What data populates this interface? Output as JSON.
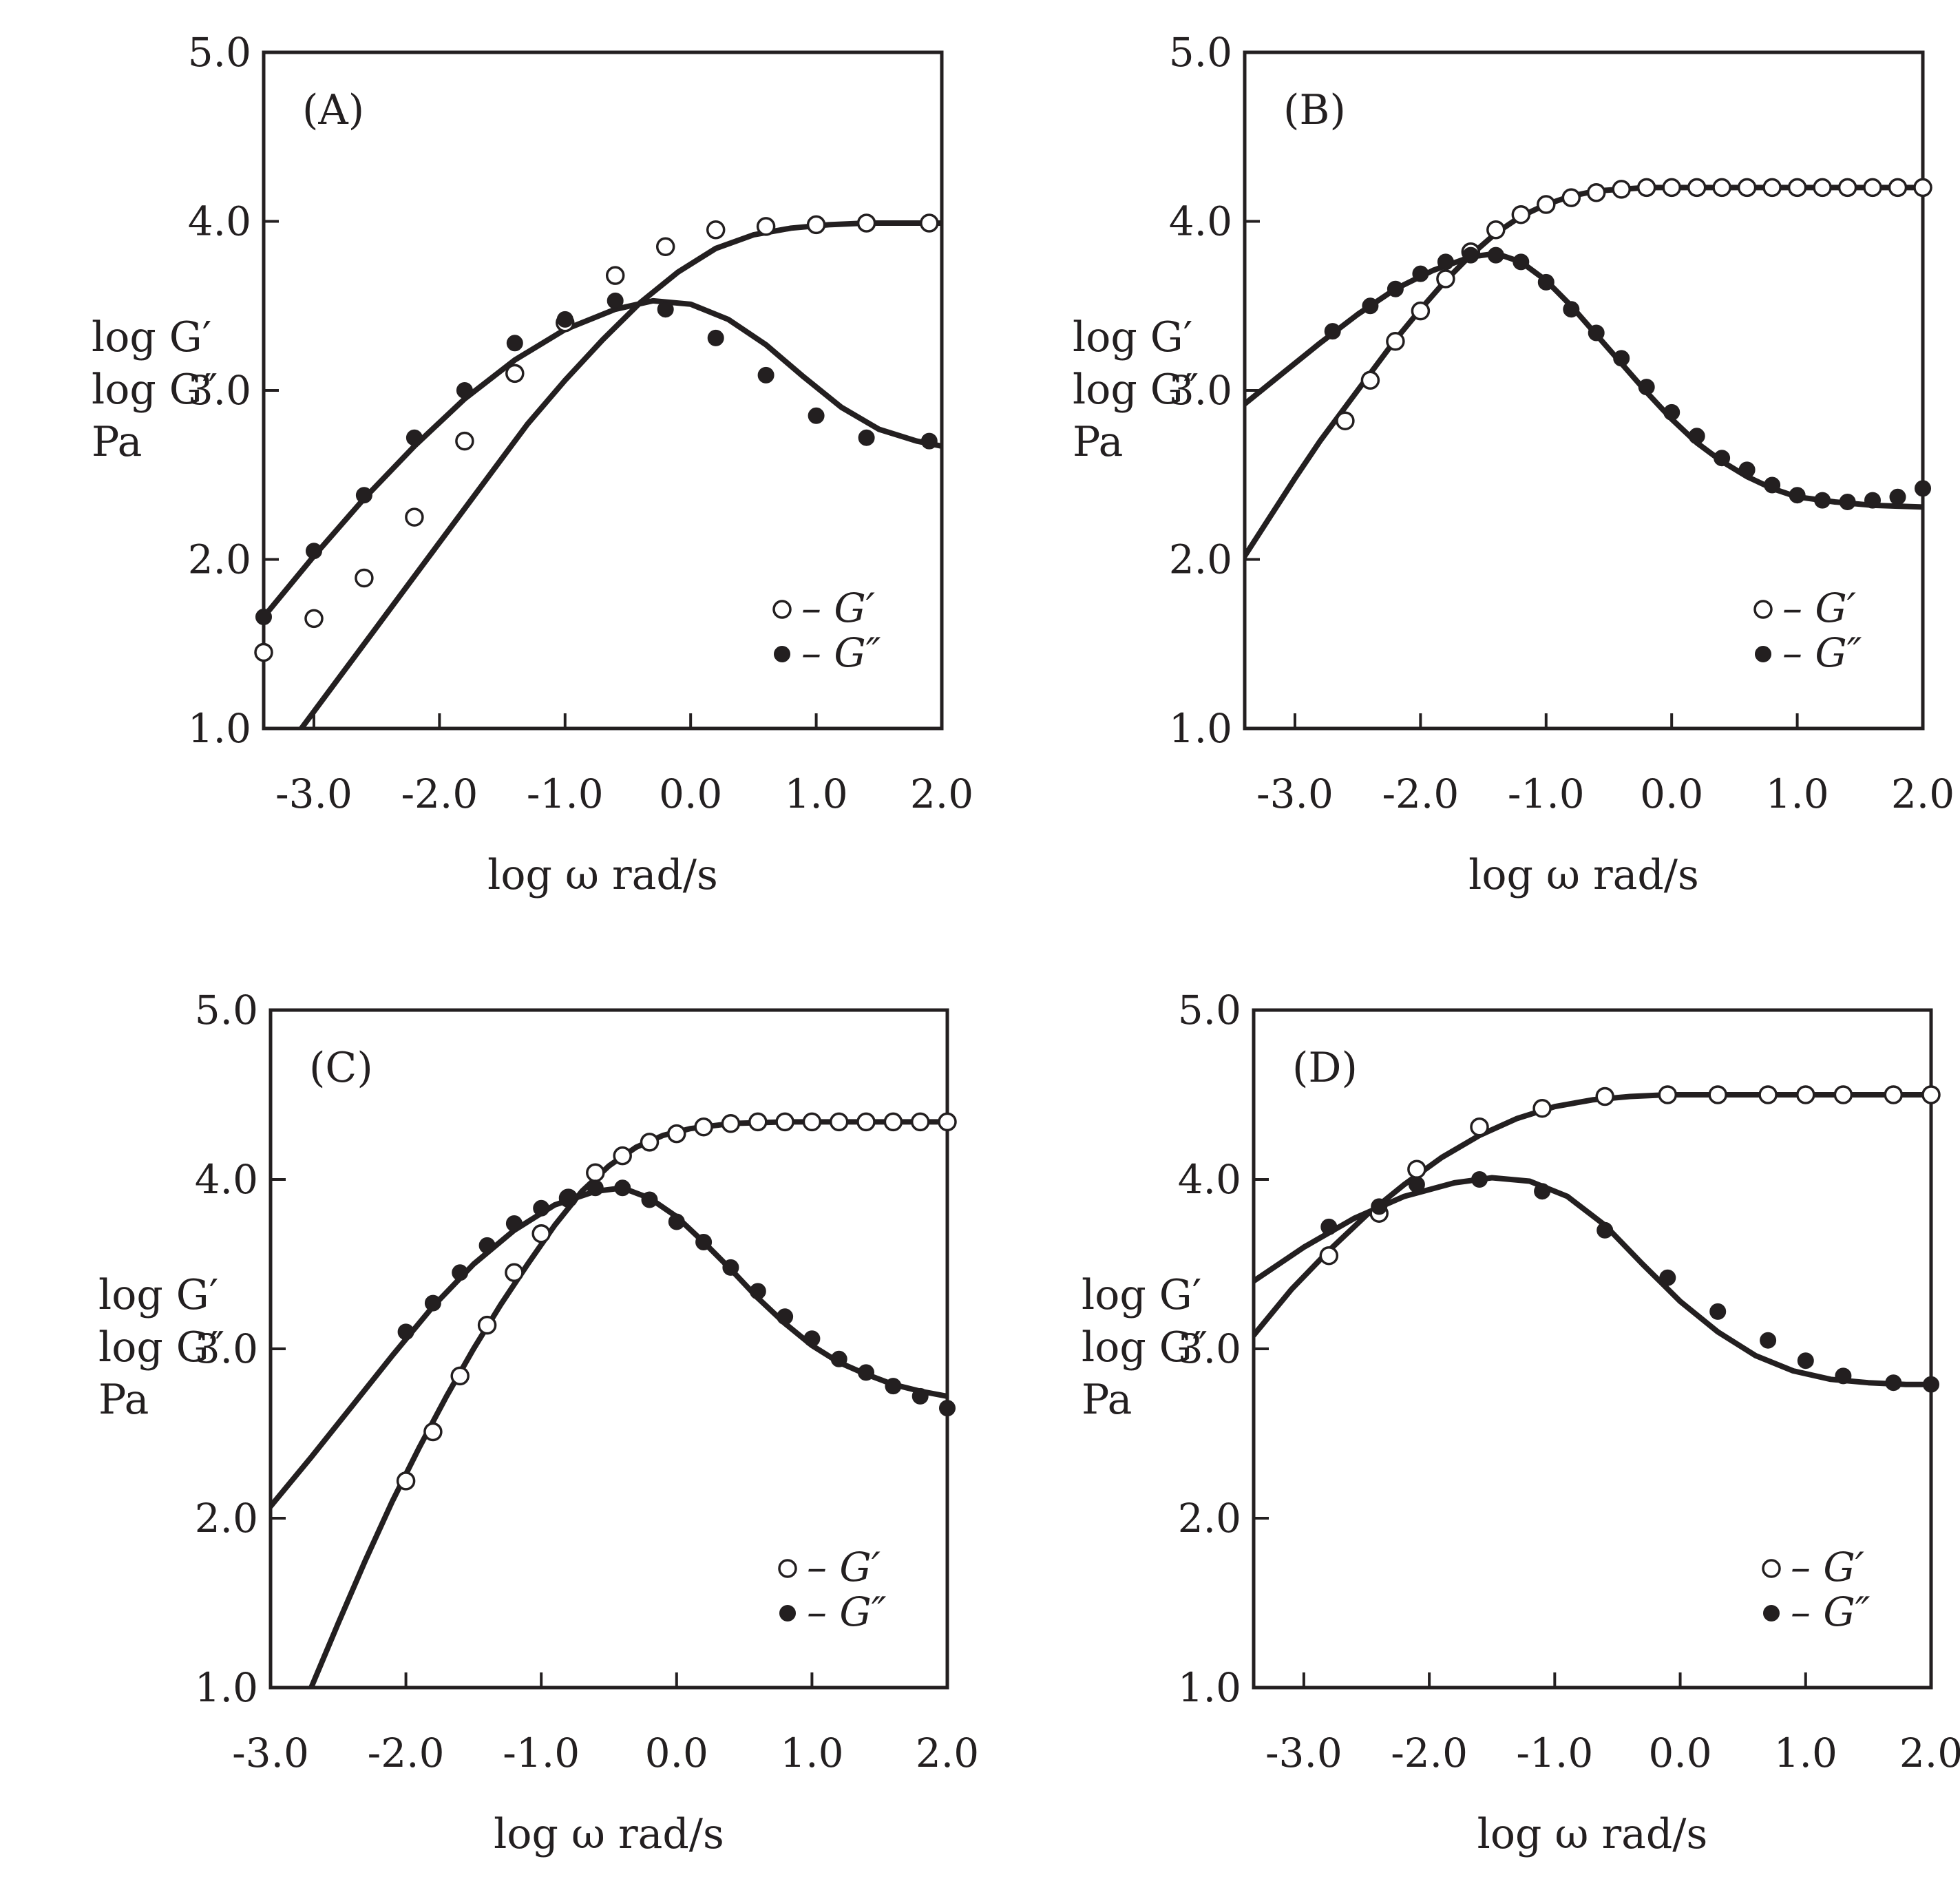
{
  "chart_data": [
    {
      "panel_label": "(A)",
      "type": "line",
      "xlabel": "log ω  rad/s",
      "ylabel": [
        "log G′",
        "log G″",
        "Pa"
      ],
      "xlim": [
        -3.4,
        2.0
      ],
      "ylim": [
        1.0,
        5.0
      ],
      "xticks": [
        "-3.0",
        "-2.0",
        "-1.0",
        "0.0",
        "1.0",
        "2.0"
      ],
      "xtick_values": [
        -3.0,
        -2.0,
        -1.0,
        0.0,
        1.0,
        2.0
      ],
      "yticks": [
        "1.0",
        "2.0",
        "3.0",
        "4.0",
        "5.0"
      ],
      "ytick_values": [
        1.0,
        2.0,
        3.0,
        4.0,
        5.0
      ],
      "legend": [
        "– G′",
        "– G″"
      ],
      "series": [
        {
          "name": "G′",
          "marker": "open",
          "x": [
            -3.4,
            -3.0,
            -2.6,
            -2.2,
            -1.8,
            -1.4,
            -1.0,
            -0.6,
            -0.2,
            0.2,
            0.6,
            1.0,
            1.4,
            1.9
          ],
          "y": [
            1.45,
            1.65,
            1.89,
            2.25,
            2.7,
            3.1,
            3.4,
            3.68,
            3.85,
            3.95,
            3.97,
            3.98,
            3.99,
            3.99
          ],
          "fit_x": [
            -3.1,
            -2.8,
            -2.5,
            -2.2,
            -1.9,
            -1.6,
            -1.3,
            -1.0,
            -0.7,
            -0.4,
            -0.1,
            0.2,
            0.5,
            0.8,
            1.1,
            1.4,
            1.7,
            2.0
          ],
          "fit_y": [
            1.0,
            1.3,
            1.6,
            1.9,
            2.2,
            2.5,
            2.8,
            3.06,
            3.3,
            3.52,
            3.7,
            3.84,
            3.92,
            3.96,
            3.98,
            3.99,
            3.99,
            3.99
          ]
        },
        {
          "name": "G″",
          "marker": "filled",
          "x": [
            -3.4,
            -3.0,
            -2.6,
            -2.2,
            -1.8,
            -1.4,
            -1.0,
            -0.6,
            -0.2,
            0.2,
            0.6,
            1.0,
            1.4,
            1.9
          ],
          "y": [
            1.66,
            2.05,
            2.38,
            2.72,
            3.0,
            3.28,
            3.42,
            3.53,
            3.48,
            3.31,
            3.09,
            2.85,
            2.72,
            2.7
          ],
          "fit_x": [
            -3.4,
            -3.0,
            -2.6,
            -2.2,
            -1.8,
            -1.4,
            -1.0,
            -0.6,
            -0.3,
            0.0,
            0.3,
            0.6,
            0.9,
            1.2,
            1.5,
            1.8,
            2.0
          ],
          "fit_y": [
            1.66,
            2.02,
            2.36,
            2.67,
            2.95,
            3.18,
            3.36,
            3.48,
            3.53,
            3.51,
            3.42,
            3.27,
            3.08,
            2.9,
            2.77,
            2.7,
            2.67
          ]
        }
      ]
    },
    {
      "panel_label": "(B)",
      "type": "line",
      "xlabel": "log ω  rad/s",
      "ylabel": [
        "log G′",
        "log G″",
        "Pa"
      ],
      "xlim": [
        -3.4,
        2.0
      ],
      "ylim": [
        1.0,
        5.0
      ],
      "xticks": [
        "-3.0",
        "-2.0",
        "-1.0",
        "0.0",
        "1.0",
        "2.0"
      ],
      "xtick_values": [
        -3.0,
        -2.0,
        -1.0,
        0.0,
        1.0,
        2.0
      ],
      "yticks": [
        "1.0",
        "2.0",
        "3.0",
        "4.0",
        "5.0"
      ],
      "ytick_values": [
        1.0,
        2.0,
        3.0,
        4.0,
        5.0
      ],
      "legend": [
        "– G′",
        "– G″"
      ],
      "series": [
        {
          "name": "G′",
          "marker": "open",
          "x": [
            -2.6,
            -2.4,
            -2.2,
            -2.0,
            -1.8,
            -1.6,
            -1.4,
            -1.2,
            -1.0,
            -0.8,
            -0.6,
            -0.4,
            -0.2,
            0.0,
            0.2,
            0.4,
            0.6,
            0.8,
            1.0,
            1.2,
            1.4,
            1.6,
            1.8,
            2.0
          ],
          "y": [
            2.82,
            3.06,
            3.29,
            3.47,
            3.66,
            3.82,
            3.95,
            4.04,
            4.1,
            4.14,
            4.17,
            4.19,
            4.2,
            4.2,
            4.2,
            4.2,
            4.2,
            4.2,
            4.2,
            4.2,
            4.2,
            4.2,
            4.2,
            4.2
          ],
          "fit_x": [
            -3.4,
            -3.2,
            -3.0,
            -2.8,
            -2.6,
            -2.4,
            -2.2,
            -2.0,
            -1.8,
            -1.6,
            -1.4,
            -1.2,
            -1.0,
            -0.8,
            -0.6,
            -0.4,
            -0.2,
            0.0,
            0.5,
            1.0,
            1.5,
            2.0
          ],
          "fit_y": [
            2.02,
            2.25,
            2.48,
            2.7,
            2.9,
            3.1,
            3.3,
            3.48,
            3.65,
            3.8,
            3.93,
            4.03,
            4.1,
            4.15,
            4.18,
            4.19,
            4.2,
            4.2,
            4.2,
            4.2,
            4.2,
            4.2
          ]
        },
        {
          "name": "G″",
          "marker": "filled",
          "x": [
            -2.7,
            -2.4,
            -2.2,
            -2.0,
            -1.8,
            -1.6,
            -1.4,
            -1.2,
            -1.0,
            -0.8,
            -0.6,
            -0.4,
            -0.2,
            0.0,
            0.2,
            0.4,
            0.6,
            0.8,
            1.0,
            1.2,
            1.4,
            1.6,
            1.8,
            2.0
          ],
          "y": [
            3.35,
            3.5,
            3.6,
            3.69,
            3.76,
            3.8,
            3.8,
            3.76,
            3.64,
            3.48,
            3.34,
            3.19,
            3.02,
            2.87,
            2.73,
            2.6,
            2.53,
            2.44,
            2.38,
            2.35,
            2.34,
            2.35,
            2.37,
            2.42
          ],
          "fit_x": [
            -3.4,
            -3.1,
            -2.8,
            -2.5,
            -2.2,
            -1.9,
            -1.6,
            -1.4,
            -1.2,
            -1.0,
            -0.8,
            -0.6,
            -0.4,
            -0.2,
            0.0,
            0.2,
            0.4,
            0.6,
            0.8,
            1.0,
            1.3,
            1.6,
            2.0
          ],
          "fit_y": [
            2.92,
            3.1,
            3.28,
            3.45,
            3.6,
            3.71,
            3.79,
            3.81,
            3.76,
            3.65,
            3.5,
            3.33,
            3.16,
            2.99,
            2.83,
            2.69,
            2.58,
            2.49,
            2.42,
            2.37,
            2.34,
            2.32,
            2.31
          ]
        }
      ]
    },
    {
      "panel_label": "(C)",
      "type": "line",
      "xlabel": "log ω  rad/s",
      "ylabel": [
        "log G′",
        "log G″",
        "Pa"
      ],
      "xlim": [
        -3.0,
        2.0
      ],
      "ylim": [
        1.0,
        5.0
      ],
      "xticks": [
        "-3.0",
        "-2.0",
        "-1.0",
        "0.0",
        "1.0",
        "2.0"
      ],
      "xtick_values": [
        -3.0,
        -2.0,
        -1.0,
        0.0,
        1.0,
        2.0
      ],
      "yticks": [
        "1.0",
        "2.0",
        "3.0",
        "4.0",
        "5.0"
      ],
      "ytick_values": [
        1.0,
        2.0,
        3.0,
        4.0,
        5.0
      ],
      "legend": [
        "– G′",
        "– G″"
      ],
      "series": [
        {
          "name": "G′",
          "marker": "open",
          "x": [
            -2.0,
            -1.8,
            -1.6,
            -1.4,
            -1.2,
            -1.0,
            -0.8,
            -0.6,
            -0.4,
            -0.2,
            0.0,
            0.2,
            0.4,
            0.6,
            0.8,
            1.0,
            1.2,
            1.4,
            1.6,
            1.8,
            2.0
          ],
          "y": [
            2.22,
            2.51,
            2.84,
            3.14,
            3.45,
            3.68,
            3.89,
            4.04,
            4.14,
            4.22,
            4.27,
            4.31,
            4.33,
            4.34,
            4.34,
            4.34,
            4.34,
            4.34,
            4.34,
            4.34,
            4.34
          ],
          "fit_x": [
            -2.7,
            -2.5,
            -2.3,
            -2.1,
            -1.9,
            -1.7,
            -1.5,
            -1.3,
            -1.1,
            -0.9,
            -0.7,
            -0.5,
            -0.3,
            -0.1,
            0.1,
            0.4,
            0.8,
            1.2,
            1.6,
            2.0
          ],
          "fit_y": [
            1.0,
            1.38,
            1.75,
            2.1,
            2.42,
            2.72,
            3.0,
            3.26,
            3.5,
            3.73,
            3.93,
            4.08,
            4.19,
            4.26,
            4.3,
            4.33,
            4.34,
            4.34,
            4.34,
            4.34
          ]
        },
        {
          "name": "G″",
          "marker": "filled",
          "x": [
            -2.0,
            -1.8,
            -1.6,
            -1.4,
            -1.2,
            -1.0,
            -0.8,
            -0.6,
            -0.4,
            -0.2,
            0.0,
            0.2,
            0.4,
            0.6,
            0.8,
            1.0,
            1.2,
            1.4,
            1.6,
            1.8,
            2.0
          ],
          "y": [
            3.1,
            3.27,
            3.45,
            3.61,
            3.74,
            3.83,
            3.89,
            3.95,
            3.95,
            3.88,
            3.75,
            3.63,
            3.48,
            3.34,
            3.19,
            3.06,
            2.94,
            2.86,
            2.78,
            2.72,
            2.65
          ],
          "fit_x": [
            -3.0,
            -2.7,
            -2.4,
            -2.1,
            -1.8,
            -1.5,
            -1.2,
            -0.9,
            -0.6,
            -0.4,
            -0.2,
            0.0,
            0.2,
            0.4,
            0.6,
            0.8,
            1.0,
            1.2,
            1.4,
            1.6,
            1.8,
            2.0
          ],
          "fit_y": [
            2.07,
            2.36,
            2.66,
            2.96,
            3.25,
            3.5,
            3.7,
            3.85,
            3.93,
            3.95,
            3.89,
            3.78,
            3.63,
            3.47,
            3.3,
            3.15,
            3.02,
            2.92,
            2.85,
            2.79,
            2.75,
            2.72
          ]
        }
      ]
    },
    {
      "panel_label": "(D)",
      "type": "line",
      "xlabel": "log ω  rad/s",
      "ylabel": [
        "log G′",
        "log G″",
        "Pa"
      ],
      "xlim": [
        -3.4,
        2.0
      ],
      "ylim": [
        1.0,
        5.0
      ],
      "xticks": [
        "-3.0",
        "-2.0",
        "-1.0",
        "0.0",
        "1.0",
        "2.0"
      ],
      "xtick_values": [
        -3.0,
        -2.0,
        -1.0,
        0.0,
        1.0,
        2.0
      ],
      "yticks": [
        "1.0",
        "2.0",
        "3.0",
        "4.0",
        "5.0"
      ],
      "ytick_values": [
        1.0,
        2.0,
        3.0,
        4.0,
        5.0
      ],
      "legend": [
        "– G′",
        "– G″"
      ],
      "series": [
        {
          "name": "G′",
          "marker": "open",
          "x": [
            -2.8,
            -2.4,
            -2.1,
            -1.6,
            -1.1,
            -0.6,
            -0.1,
            0.3,
            0.7,
            1.0,
            1.3,
            1.7,
            2.0
          ],
          "y": [
            3.55,
            3.8,
            4.06,
            4.31,
            4.42,
            4.49,
            4.5,
            4.5,
            4.5,
            4.5,
            4.5,
            4.5,
            4.5
          ],
          "fit_x": [
            -3.4,
            -3.1,
            -2.8,
            -2.5,
            -2.2,
            -1.9,
            -1.6,
            -1.3,
            -1.0,
            -0.7,
            -0.4,
            -0.1,
            0.4,
            1.0,
            1.5,
            2.0
          ],
          "fit_y": [
            3.08,
            3.35,
            3.58,
            3.79,
            3.97,
            4.13,
            4.26,
            4.36,
            4.43,
            4.47,
            4.49,
            4.5,
            4.5,
            4.5,
            4.5,
            4.5
          ]
        },
        {
          "name": "G″",
          "marker": "filled",
          "x": [
            -2.8,
            -2.4,
            -2.1,
            -1.6,
            -1.1,
            -0.6,
            -0.1,
            0.3,
            0.7,
            1.0,
            1.3,
            1.7,
            2.0
          ],
          "y": [
            3.72,
            3.84,
            3.97,
            4.0,
            3.93,
            3.7,
            3.42,
            3.22,
            3.05,
            2.93,
            2.84,
            2.8,
            2.79
          ],
          "fit_x": [
            -3.4,
            -3.0,
            -2.6,
            -2.2,
            -1.8,
            -1.5,
            -1.2,
            -0.9,
            -0.6,
            -0.3,
            0.0,
            0.3,
            0.6,
            0.9,
            1.2,
            1.5,
            1.8,
            2.0
          ],
          "fit_y": [
            3.4,
            3.6,
            3.77,
            3.9,
            3.98,
            4.01,
            3.99,
            3.9,
            3.73,
            3.5,
            3.28,
            3.1,
            2.96,
            2.87,
            2.82,
            2.8,
            2.79,
            2.79
          ]
        }
      ]
    }
  ]
}
